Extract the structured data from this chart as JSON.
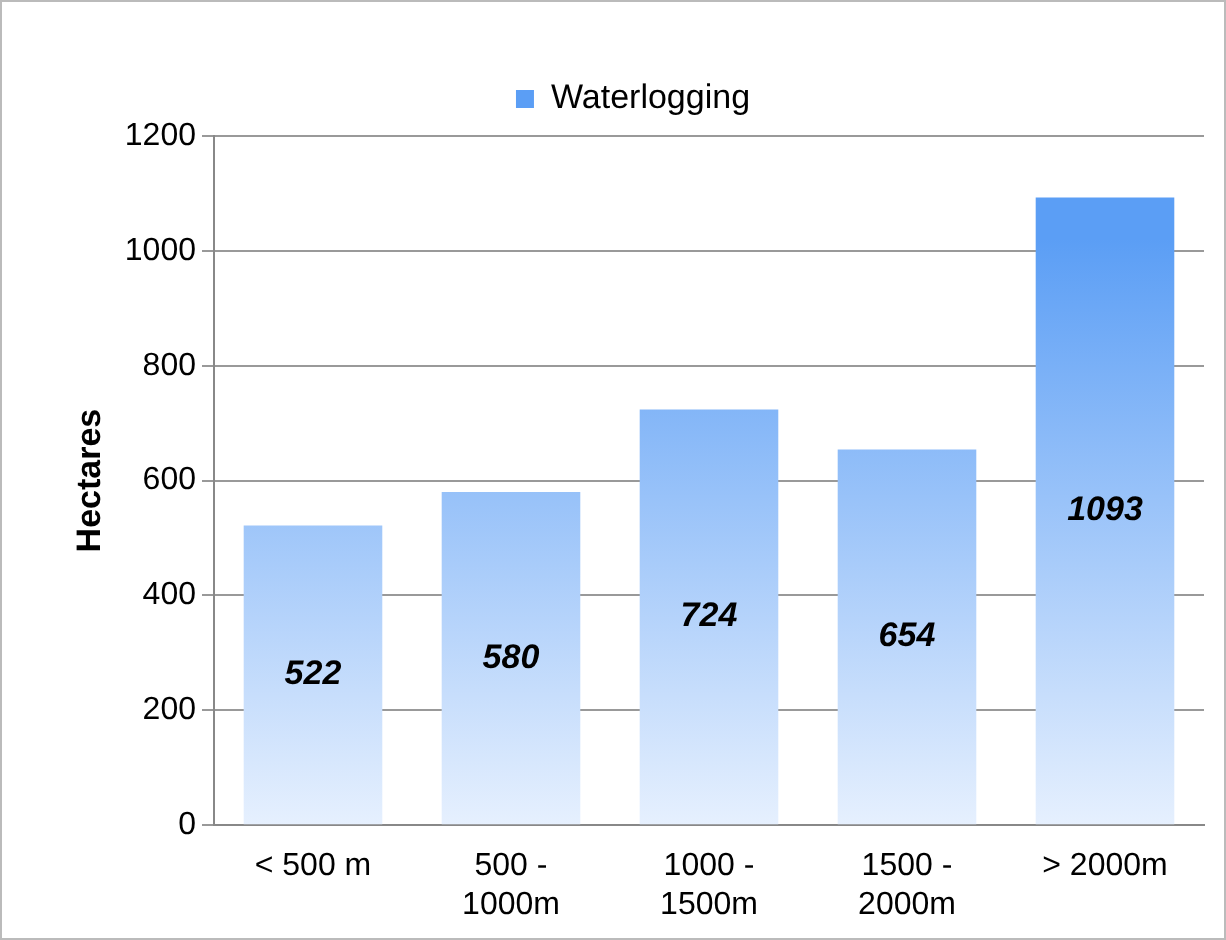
{
  "chart_data": {
    "type": "bar",
    "ylabel": "Hectares",
    "categories": [
      "< 500 m",
      "500 -\n1000m",
      "1000 -\n1500m",
      "1500 -\n2000m",
      "> 2000m"
    ],
    "series": [
      {
        "name": "Waterlogging",
        "color": "#5b9ef5",
        "values": [
          522,
          580,
          724,
          654,
          1093
        ]
      }
    ],
    "ylim": [
      0,
      1200
    ],
    "yticks": [
      0,
      200,
      400,
      600,
      800,
      1000,
      1200
    ],
    "grid": "y",
    "legend": "top",
    "data_labels": true
  }
}
